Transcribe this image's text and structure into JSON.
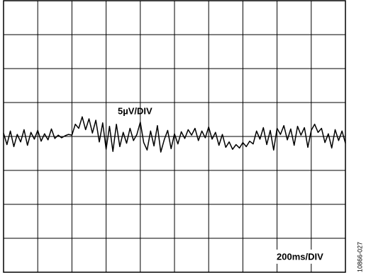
{
  "chart_data": {
    "type": "line",
    "annotations": [
      "5µV/DIV",
      "200ms/DIV",
      "10866-027"
    ],
    "color": "#000000",
    "grid": true,
    "xlim": [
      0,
      2000
    ],
    "xticks": [
      0,
      200,
      400,
      600,
      800,
      1000,
      1200,
      1400,
      1600,
      1800,
      2000
    ],
    "ylim": [
      -20,
      20
    ],
    "yticks": [
      -20,
      -15,
      -10,
      -5,
      0,
      5,
      10,
      15,
      20
    ],
    "x": [
      0,
      20,
      40,
      60,
      80,
      100,
      120,
      140,
      160,
      180,
      200,
      220,
      240,
      260,
      280,
      300,
      320,
      340,
      360,
      380,
      400,
      420,
      440,
      460,
      480,
      500,
      520,
      540,
      560,
      580,
      600,
      620,
      640,
      660,
      680,
      700,
      720,
      740,
      760,
      780,
      800,
      820,
      840,
      860,
      880,
      900,
      920,
      940,
      960,
      980,
      1000,
      1020,
      1040,
      1060,
      1080,
      1100,
      1120,
      1140,
      1160,
      1180,
      1200,
      1220,
      1240,
      1260,
      1280,
      1300,
      1320,
      1340,
      1360,
      1380,
      1400,
      1420,
      1440,
      1460,
      1480,
      1500,
      1520,
      1540,
      1560,
      1580,
      1600,
      1620,
      1640,
      1660,
      1680,
      1700,
      1720,
      1740,
      1760,
      1780,
      1800,
      1820,
      1840,
      1860,
      1880,
      1900,
      1920,
      1940,
      1960,
      1980,
      2000
    ],
    "values": [
      0.5,
      -1.2,
      0.8,
      -1.5,
      0.3,
      -0.8,
      1.0,
      -1.3,
      0.6,
      -0.4,
      0.9,
      -0.7,
      0.4,
      -0.5,
      1.1,
      -0.3,
      0.2,
      -0.2,
      0.1,
      0.3,
      0.2,
      1.8,
      1.2,
      2.9,
      1.0,
      2.6,
      0.5,
      2.4,
      -0.8,
      2.0,
      -1.9,
      1.5,
      -2.2,
      1.8,
      -1.5,
      0.6,
      -1.0,
      1.2,
      -0.6,
      0.3,
      2.1,
      -0.9,
      -2.0,
      0.8,
      -1.4,
      1.6,
      -2.3,
      -0.5,
      0.9,
      -1.8,
      0.4,
      -1.1,
      0.7,
      -0.3,
      1.0,
      0.2,
      1.2,
      -0.6,
      0.8,
      -0.2,
      1.4,
      -0.4,
      0.6,
      -1.3,
      0.3,
      -1.6,
      -0.8,
      -1.9,
      -1.2,
      -1.7,
      -0.9,
      -1.5,
      -0.7,
      -1.1,
      0.8,
      -0.4,
      1.3,
      -1.2,
      0.9,
      -2.0,
      1.2,
      0.3,
      1.6,
      -0.5,
      1.1,
      -1.3,
      1.5,
      0.2,
      1.3,
      -1.6,
      0.9,
      1.8,
      0.6,
      1.2,
      -0.9,
      0.4,
      -1.7,
      1.0,
      -0.6,
      0.8,
      -1.0
    ]
  }
}
